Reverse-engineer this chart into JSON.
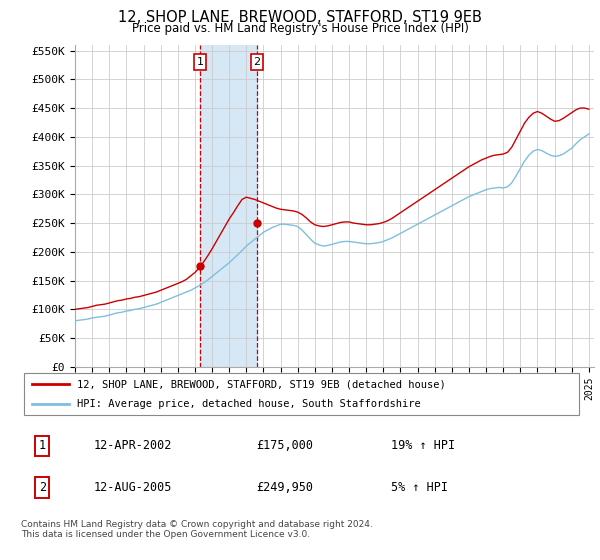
{
  "title": "12, SHOP LANE, BREWOOD, STAFFORD, ST19 9EB",
  "subtitle": "Price paid vs. HM Land Registry's House Price Index (HPI)",
  "legend_line1": "12, SHOP LANE, BREWOOD, STAFFORD, ST19 9EB (detached house)",
  "legend_line2": "HPI: Average price, detached house, South Staffordshire",
  "transaction1_date": "12-APR-2002",
  "transaction1_price": "£175,000",
  "transaction1_hpi": "19% ↑ HPI",
  "transaction2_date": "12-AUG-2005",
  "transaction2_price": "£249,950",
  "transaction2_hpi": "5% ↑ HPI",
  "footer": "Contains HM Land Registry data © Crown copyright and database right 2024.\nThis data is licensed under the Open Government Licence v3.0.",
  "hpi_color": "#7fbfdf",
  "price_color": "#cc0000",
  "shaded_color": "#d6e8f5",
  "vline_color": "#cc0000",
  "ylim": [
    0,
    560000
  ],
  "yticks": [
    0,
    50000,
    100000,
    150000,
    200000,
    250000,
    300000,
    350000,
    400000,
    450000,
    500000,
    550000
  ],
  "transaction1_x": 2002.29,
  "transaction2_x": 2005.62,
  "background_color": "#ffffff",
  "grid_color": "#cccccc",
  "years_hpi": [
    1995.0,
    1995.25,
    1995.5,
    1995.75,
    1996.0,
    1996.25,
    1996.5,
    1996.75,
    1997.0,
    1997.25,
    1997.5,
    1997.75,
    1998.0,
    1998.25,
    1998.5,
    1998.75,
    1999.0,
    1999.25,
    1999.5,
    1999.75,
    2000.0,
    2000.25,
    2000.5,
    2000.75,
    2001.0,
    2001.25,
    2001.5,
    2001.75,
    2002.0,
    2002.25,
    2002.5,
    2002.75,
    2003.0,
    2003.25,
    2003.5,
    2003.75,
    2004.0,
    2004.25,
    2004.5,
    2004.75,
    2005.0,
    2005.25,
    2005.5,
    2005.75,
    2006.0,
    2006.25,
    2006.5,
    2006.75,
    2007.0,
    2007.25,
    2007.5,
    2007.75,
    2008.0,
    2008.25,
    2008.5,
    2008.75,
    2009.0,
    2009.25,
    2009.5,
    2009.75,
    2010.0,
    2010.25,
    2010.5,
    2010.75,
    2011.0,
    2011.25,
    2011.5,
    2011.75,
    2012.0,
    2012.25,
    2012.5,
    2012.75,
    2013.0,
    2013.25,
    2013.5,
    2013.75,
    2014.0,
    2014.25,
    2014.5,
    2014.75,
    2015.0,
    2015.25,
    2015.5,
    2015.75,
    2016.0,
    2016.25,
    2016.5,
    2016.75,
    2017.0,
    2017.25,
    2017.5,
    2017.75,
    2018.0,
    2018.25,
    2018.5,
    2018.75,
    2019.0,
    2019.25,
    2019.5,
    2019.75,
    2020.0,
    2020.25,
    2020.5,
    2020.75,
    2021.0,
    2021.25,
    2021.5,
    2021.75,
    2022.0,
    2022.25,
    2022.5,
    2022.75,
    2023.0,
    2023.25,
    2023.5,
    2023.75,
    2024.0,
    2024.25,
    2024.5,
    2024.75,
    2025.0
  ],
  "hpi_values": [
    80000,
    81000,
    82000,
    83000,
    85000,
    86000,
    87000,
    88000,
    90000,
    92000,
    94000,
    95000,
    97000,
    98000,
    100000,
    101000,
    103000,
    105000,
    107000,
    109000,
    112000,
    115000,
    118000,
    121000,
    124000,
    127000,
    130000,
    133000,
    137000,
    141000,
    146000,
    151000,
    157000,
    163000,
    169000,
    175000,
    181000,
    188000,
    195000,
    202000,
    210000,
    216000,
    222000,
    228000,
    234000,
    238000,
    242000,
    245000,
    248000,
    248000,
    247000,
    246000,
    244000,
    238000,
    230000,
    222000,
    215000,
    212000,
    210000,
    211000,
    213000,
    215000,
    217000,
    218000,
    218000,
    217000,
    216000,
    215000,
    214000,
    214000,
    215000,
    216000,
    218000,
    221000,
    224000,
    228000,
    232000,
    236000,
    240000,
    244000,
    248000,
    252000,
    256000,
    260000,
    264000,
    268000,
    272000,
    276000,
    280000,
    284000,
    288000,
    292000,
    296000,
    299000,
    302000,
    305000,
    308000,
    310000,
    311000,
    312000,
    311000,
    313000,
    320000,
    332000,
    345000,
    358000,
    368000,
    375000,
    378000,
    376000,
    372000,
    368000,
    366000,
    367000,
    370000,
    375000,
    380000,
    388000,
    395000,
    400000,
    405000
  ],
  "years_price": [
    1995.0,
    1995.25,
    1995.5,
    1995.75,
    1996.0,
    1996.25,
    1996.5,
    1996.75,
    1997.0,
    1997.25,
    1997.5,
    1997.75,
    1998.0,
    1998.25,
    1998.5,
    1998.75,
    1999.0,
    1999.25,
    1999.5,
    1999.75,
    2000.0,
    2000.25,
    2000.5,
    2000.75,
    2001.0,
    2001.25,
    2001.5,
    2001.75,
    2002.0,
    2002.25,
    2002.5,
    2002.75,
    2003.0,
    2003.25,
    2003.5,
    2003.75,
    2004.0,
    2004.25,
    2004.5,
    2004.75,
    2005.0,
    2005.25,
    2005.5,
    2005.75,
    2006.0,
    2006.25,
    2006.5,
    2006.75,
    2007.0,
    2007.25,
    2007.5,
    2007.75,
    2008.0,
    2008.25,
    2008.5,
    2008.75,
    2009.0,
    2009.25,
    2009.5,
    2009.75,
    2010.0,
    2010.25,
    2010.5,
    2010.75,
    2011.0,
    2011.25,
    2011.5,
    2011.75,
    2012.0,
    2012.25,
    2012.5,
    2012.75,
    2013.0,
    2013.25,
    2013.5,
    2013.75,
    2014.0,
    2014.25,
    2014.5,
    2014.75,
    2015.0,
    2015.25,
    2015.5,
    2015.75,
    2016.0,
    2016.25,
    2016.5,
    2016.75,
    2017.0,
    2017.25,
    2017.5,
    2017.75,
    2018.0,
    2018.25,
    2018.5,
    2018.75,
    2019.0,
    2019.25,
    2019.5,
    2019.75,
    2020.0,
    2020.25,
    2020.5,
    2020.75,
    2021.0,
    2021.25,
    2021.5,
    2021.75,
    2022.0,
    2022.25,
    2022.5,
    2022.75,
    2023.0,
    2023.25,
    2023.5,
    2023.75,
    2024.0,
    2024.25,
    2024.5,
    2024.75,
    2025.0
  ],
  "price_values": [
    100000,
    101000,
    102000,
    103000,
    105000,
    107000,
    108000,
    109000,
    111000,
    113000,
    115000,
    116000,
    118000,
    119000,
    121000,
    122000,
    124000,
    126000,
    128000,
    130000,
    133000,
    136000,
    139000,
    142000,
    145000,
    148000,
    152000,
    158000,
    164000,
    172000,
    182000,
    193000,
    205000,
    218000,
    231000,
    244000,
    257000,
    268000,
    280000,
    291000,
    295000,
    293000,
    291000,
    288000,
    285000,
    282000,
    279000,
    276000,
    274000,
    273000,
    272000,
    271000,
    269000,
    265000,
    259000,
    252000,
    247000,
    245000,
    244000,
    245000,
    247000,
    249000,
    251000,
    252000,
    252000,
    250000,
    249000,
    248000,
    247000,
    247000,
    248000,
    249000,
    251000,
    254000,
    258000,
    263000,
    268000,
    273000,
    278000,
    283000,
    288000,
    293000,
    298000,
    303000,
    308000,
    313000,
    318000,
    323000,
    328000,
    333000,
    338000,
    343000,
    348000,
    352000,
    356000,
    360000,
    363000,
    366000,
    368000,
    369000,
    370000,
    373000,
    382000,
    396000,
    410000,
    424000,
    434000,
    441000,
    444000,
    441000,
    436000,
    431000,
    427000,
    428000,
    432000,
    437000,
    442000,
    447000,
    450000,
    450000,
    448000
  ]
}
